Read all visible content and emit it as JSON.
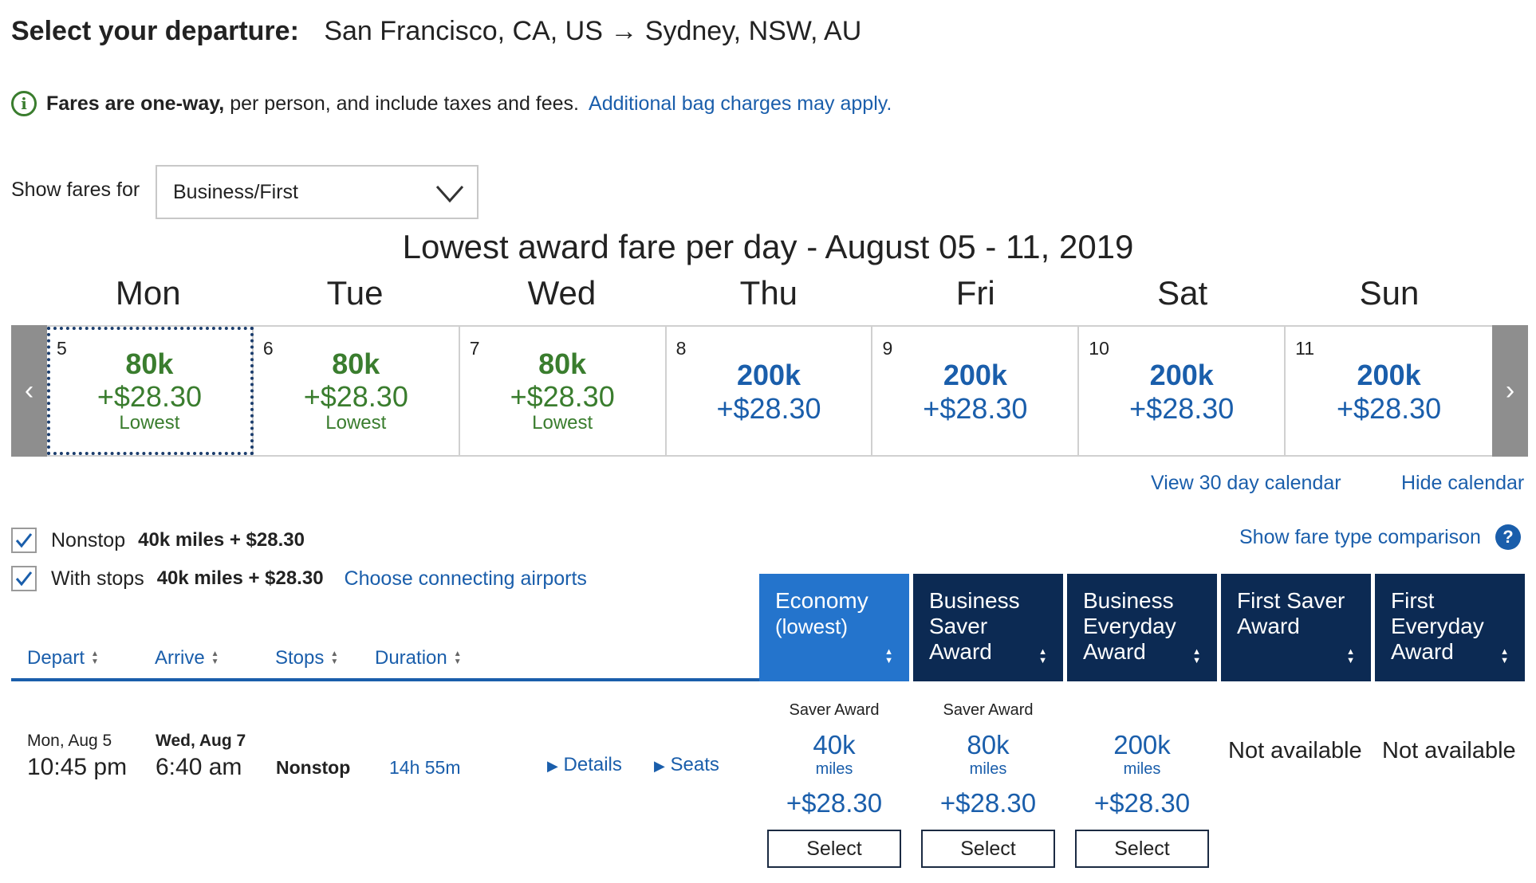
{
  "header": {
    "label": "Select your departure:",
    "route": "San Francisco, CA, US → Sydney, NSW, AU"
  },
  "info": {
    "bold": "Fares are one-way,",
    "text": " per person, and include taxes and fees.",
    "link": "Additional bag charges may apply."
  },
  "fares_filter": {
    "label": "Show fares for",
    "value": "Business/First"
  },
  "calendar": {
    "title": "Lowest award fare per day - August 05 - 11, 2019",
    "day_names": [
      "Mon",
      "Tue",
      "Wed",
      "Thu",
      "Fri",
      "Sat",
      "Sun"
    ],
    "days": [
      {
        "num": "5",
        "miles": "80k",
        "tax": "+$28.30",
        "tag": "Lowest",
        "lowest": true,
        "selected": true
      },
      {
        "num": "6",
        "miles": "80k",
        "tax": "+$28.30",
        "tag": "Lowest",
        "lowest": true,
        "selected": false
      },
      {
        "num": "7",
        "miles": "80k",
        "tax": "+$28.30",
        "tag": "Lowest",
        "lowest": true,
        "selected": false
      },
      {
        "num": "8",
        "miles": "200k",
        "tax": "+$28.30",
        "tag": "",
        "lowest": false,
        "selected": false
      },
      {
        "num": "9",
        "miles": "200k",
        "tax": "+$28.30",
        "tag": "",
        "lowest": false,
        "selected": false
      },
      {
        "num": "10",
        "miles": "200k",
        "tax": "+$28.30",
        "tag": "",
        "lowest": false,
        "selected": false
      },
      {
        "num": "11",
        "miles": "200k",
        "tax": "+$28.30",
        "tag": "",
        "lowest": false,
        "selected": false
      }
    ],
    "view30": "View 30 day calendar",
    "hide": "Hide calendar"
  },
  "filters": {
    "nonstop": {
      "label": "Nonstop",
      "amount": "40k miles + $28.30"
    },
    "with_stops": {
      "label": "With stops",
      "amount": "40k miles + $28.30"
    },
    "connecting_link": "Choose connecting airports",
    "compare_link": "Show fare type comparison"
  },
  "sort": {
    "depart": "Depart",
    "arrive": "Arrive",
    "stops": "Stops",
    "duration": "Duration"
  },
  "fare_columns": [
    {
      "line1": "Economy",
      "line2": "(lowest)",
      "line3": "",
      "active": true
    },
    {
      "line1": "Business",
      "line2": "Saver",
      "line3": "Award",
      "active": false
    },
    {
      "line1": "Business",
      "line2": "Everyday",
      "line3": "Award",
      "active": false
    },
    {
      "line1": "First Saver",
      "line2": "Award",
      "line3": "",
      "active": false
    },
    {
      "line1": "First",
      "line2": "Everyday",
      "line3": "Award",
      "active": false
    }
  ],
  "flight": {
    "depart_date": "Mon, Aug 5",
    "depart_time": "10:45 pm",
    "arrive_date": "Wed, Aug 7",
    "arrive_time": "6:40 am",
    "stops": "Nonstop",
    "duration": "14h 55m",
    "details": "Details",
    "seats": "Seats",
    "fares": [
      {
        "label": "Saver Award",
        "miles": "40k",
        "unit": "miles",
        "tax": "+$28.30",
        "button": "Select"
      },
      {
        "label": "Saver Award",
        "miles": "80k",
        "unit": "miles",
        "tax": "+$28.30",
        "button": "Select"
      },
      {
        "label": "",
        "miles": "200k",
        "unit": "miles",
        "tax": "+$28.30",
        "button": "Select"
      }
    ],
    "not_available_1": "Not available",
    "not_available_2": "Not available"
  },
  "colors": {
    "link_blue": "#1a5eab",
    "lowest_green": "#3a7d2e",
    "header_navy": "#0c2a53",
    "header_active": "#2474cc"
  }
}
